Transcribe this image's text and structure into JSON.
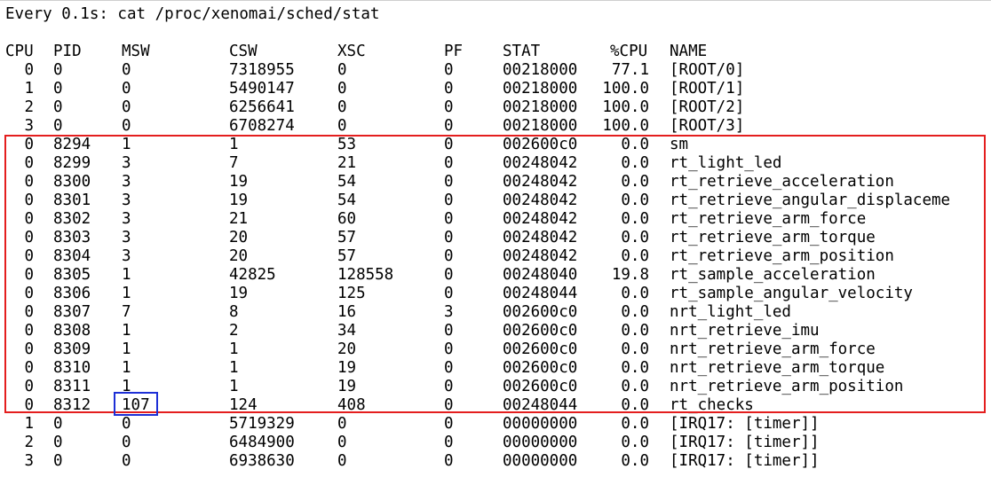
{
  "title": "Every 0.1s: cat /proc/xenomai/sched/stat",
  "colors": {
    "highlight_group": "#e41e1e",
    "highlight_cell": "#1d2fd6"
  },
  "headers": {
    "cpu": "CPU",
    "pid": "PID",
    "msw": "MSW",
    "csw": "CSW",
    "xsc": "XSC",
    "pf": "PF",
    "stat": "STAT",
    "cpu_pct": "%CPU",
    "name": "NAME"
  },
  "rows": [
    {
      "cpu": "0",
      "pid": "0",
      "msw": "0",
      "csw": "7318955",
      "xsc": "0",
      "pf": "0",
      "stat": "00218000",
      "cpu_pct": "77.1",
      "name": "[ROOT/0]"
    },
    {
      "cpu": "1",
      "pid": "0",
      "msw": "0",
      "csw": "5490147",
      "xsc": "0",
      "pf": "0",
      "stat": "00218000",
      "cpu_pct": "100.0",
      "name": "[ROOT/1]"
    },
    {
      "cpu": "2",
      "pid": "0",
      "msw": "0",
      "csw": "6256641",
      "xsc": "0",
      "pf": "0",
      "stat": "00218000",
      "cpu_pct": "100.0",
      "name": "[ROOT/2]"
    },
    {
      "cpu": "3",
      "pid": "0",
      "msw": "0",
      "csw": "6708274",
      "xsc": "0",
      "pf": "0",
      "stat": "00218000",
      "cpu_pct": "100.0",
      "name": "[ROOT/3]"
    },
    {
      "cpu": "0",
      "pid": "8294",
      "msw": "1",
      "csw": "1",
      "xsc": "53",
      "pf": "0",
      "stat": "002600c0",
      "cpu_pct": "0.0",
      "name": "sm"
    },
    {
      "cpu": "0",
      "pid": "8299",
      "msw": "3",
      "csw": "7",
      "xsc": "21",
      "pf": "0",
      "stat": "00248042",
      "cpu_pct": "0.0",
      "name": "rt_light_led"
    },
    {
      "cpu": "0",
      "pid": "8300",
      "msw": "3",
      "csw": "19",
      "xsc": "54",
      "pf": "0",
      "stat": "00248042",
      "cpu_pct": "0.0",
      "name": "rt_retrieve_acceleration"
    },
    {
      "cpu": "0",
      "pid": "8301",
      "msw": "3",
      "csw": "19",
      "xsc": "54",
      "pf": "0",
      "stat": "00248042",
      "cpu_pct": "0.0",
      "name": "rt_retrieve_angular_displaceme"
    },
    {
      "cpu": "0",
      "pid": "8302",
      "msw": "3",
      "csw": "21",
      "xsc": "60",
      "pf": "0",
      "stat": "00248042",
      "cpu_pct": "0.0",
      "name": "rt_retrieve_arm_force"
    },
    {
      "cpu": "0",
      "pid": "8303",
      "msw": "3",
      "csw": "20",
      "xsc": "57",
      "pf": "0",
      "stat": "00248042",
      "cpu_pct": "0.0",
      "name": "rt_retrieve_arm_torque"
    },
    {
      "cpu": "0",
      "pid": "8304",
      "msw": "3",
      "csw": "20",
      "xsc": "57",
      "pf": "0",
      "stat": "00248042",
      "cpu_pct": "0.0",
      "name": "rt_retrieve_arm_position"
    },
    {
      "cpu": "0",
      "pid": "8305",
      "msw": "1",
      "csw": "42825",
      "xsc": "128558",
      "pf": "0",
      "stat": "00248040",
      "cpu_pct": "19.8",
      "name": "rt_sample_acceleration"
    },
    {
      "cpu": "0",
      "pid": "8306",
      "msw": "1",
      "csw": "19",
      "xsc": "125",
      "pf": "0",
      "stat": "00248044",
      "cpu_pct": "0.0",
      "name": "rt_sample_angular_velocity"
    },
    {
      "cpu": "0",
      "pid": "8307",
      "msw": "7",
      "csw": "8",
      "xsc": "16",
      "pf": "3",
      "stat": "002600c0",
      "cpu_pct": "0.0",
      "name": "nrt_light_led"
    },
    {
      "cpu": "0",
      "pid": "8308",
      "msw": "1",
      "csw": "2",
      "xsc": "34",
      "pf": "0",
      "stat": "002600c0",
      "cpu_pct": "0.0",
      "name": "nrt_retrieve_imu"
    },
    {
      "cpu": "0",
      "pid": "8309",
      "msw": "1",
      "csw": "1",
      "xsc": "20",
      "pf": "0",
      "stat": "002600c0",
      "cpu_pct": "0.0",
      "name": "nrt_retrieve_arm_force"
    },
    {
      "cpu": "0",
      "pid": "8310",
      "msw": "1",
      "csw": "1",
      "xsc": "19",
      "pf": "0",
      "stat": "002600c0",
      "cpu_pct": "0.0",
      "name": "nrt_retrieve_arm_torque"
    },
    {
      "cpu": "0",
      "pid": "8311",
      "msw": "1",
      "csw": "1",
      "xsc": "19",
      "pf": "0",
      "stat": "002600c0",
      "cpu_pct": "0.0",
      "name": "nrt_retrieve_arm_position"
    },
    {
      "cpu": "0",
      "pid": "8312",
      "msw": "107",
      "csw": "124",
      "xsc": "408",
      "pf": "0",
      "stat": "00248044",
      "cpu_pct": "0.0",
      "name": "rt_checks"
    },
    {
      "cpu": "1",
      "pid": "0",
      "msw": "0",
      "csw": "5719329",
      "xsc": "0",
      "pf": "0",
      "stat": "00000000",
      "cpu_pct": "0.0",
      "name": "[IRQ17: [timer]]"
    },
    {
      "cpu": "2",
      "pid": "0",
      "msw": "0",
      "csw": "6484900",
      "xsc": "0",
      "pf": "0",
      "stat": "00000000",
      "cpu_pct": "0.0",
      "name": "[IRQ17: [timer]]"
    },
    {
      "cpu": "3",
      "pid": "0",
      "msw": "0",
      "csw": "6938630",
      "xsc": "0",
      "pf": "0",
      "stat": "00000000",
      "cpu_pct": "0.0",
      "name": "[IRQ17: [timer]]"
    }
  ]
}
